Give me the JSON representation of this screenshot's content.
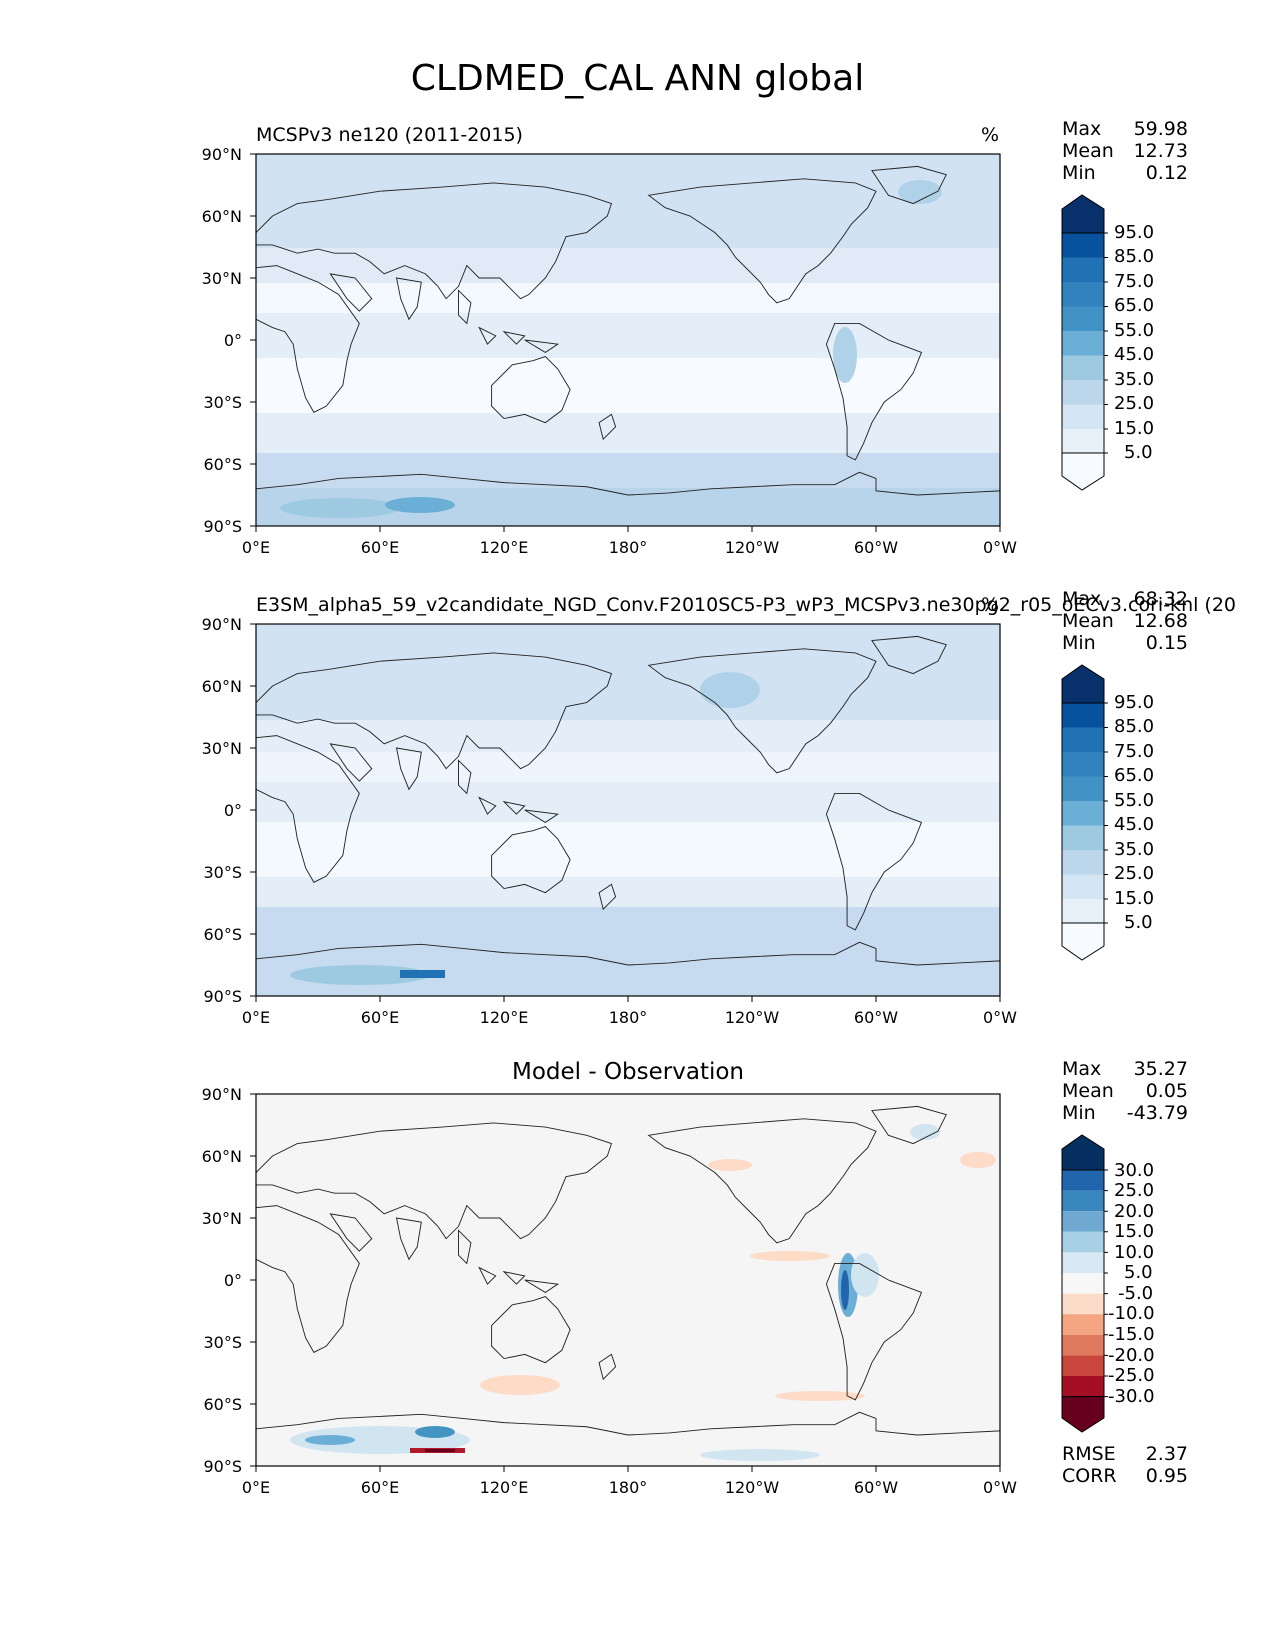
{
  "title": "CLDMED_CAL ANN global",
  "colors": {
    "land_line": "#222222",
    "frame": "#000000",
    "diff_bg": "#f5f5f5"
  },
  "panels": [
    {
      "id": "test",
      "title_left": "MCSPv3 ne120 (2011-2015)",
      "title_right": "%",
      "stats": [
        {
          "label": "Max",
          "value": "59.98"
        },
        {
          "label": "Mean",
          "value": "12.73"
        },
        {
          "label": "Min",
          "value": "0.12"
        }
      ],
      "colorbar": [
        "95.0",
        "85.0",
        "75.0",
        "65.0",
        "55.0",
        "45.0",
        "35.0",
        "25.0",
        "15.0",
        "5.0"
      ]
    },
    {
      "id": "ref",
      "title_left": "E3SM_alpha5_59_v2candidate_NGD_Conv.F2010SC5-P3_wP3_MCSPv3.ne30pg2_r05_oECv3.cori-knl (20",
      "title_right": "%",
      "stats": [
        {
          "label": "Max",
          "value": "68.32"
        },
        {
          "label": "Mean",
          "value": "12.68"
        },
        {
          "label": "Min",
          "value": "0.15"
        }
      ],
      "colorbar": [
        "95.0",
        "85.0",
        "75.0",
        "65.0",
        "55.0",
        "45.0",
        "35.0",
        "25.0",
        "15.0",
        "5.0"
      ]
    },
    {
      "id": "diff",
      "title_center": "Model - Observation",
      "stats": [
        {
          "label": "Max",
          "value": "35.27"
        },
        {
          "label": "Mean",
          "value": "0.05"
        },
        {
          "label": "Min",
          "value": "-43.79"
        }
      ],
      "colorbar": [
        "30.0",
        "25.0",
        "20.0",
        "15.0",
        "10.0",
        "5.0",
        "-5.0",
        "-10.0",
        "-15.0",
        "-20.0",
        "-25.0",
        "-30.0"
      ],
      "extra_stats": [
        {
          "label": "RMSE",
          "value": "2.37"
        },
        {
          "label": "CORR",
          "value": "0.95"
        }
      ]
    }
  ],
  "lat_ticks": [
    "90°N",
    "60°N",
    "30°N",
    "0°",
    "30°S",
    "60°S",
    "90°S"
  ],
  "lon_ticks": [
    "0°E",
    "60°E",
    "120°E",
    "180°",
    "120°W",
    "60°W",
    "0°W"
  ]
}
